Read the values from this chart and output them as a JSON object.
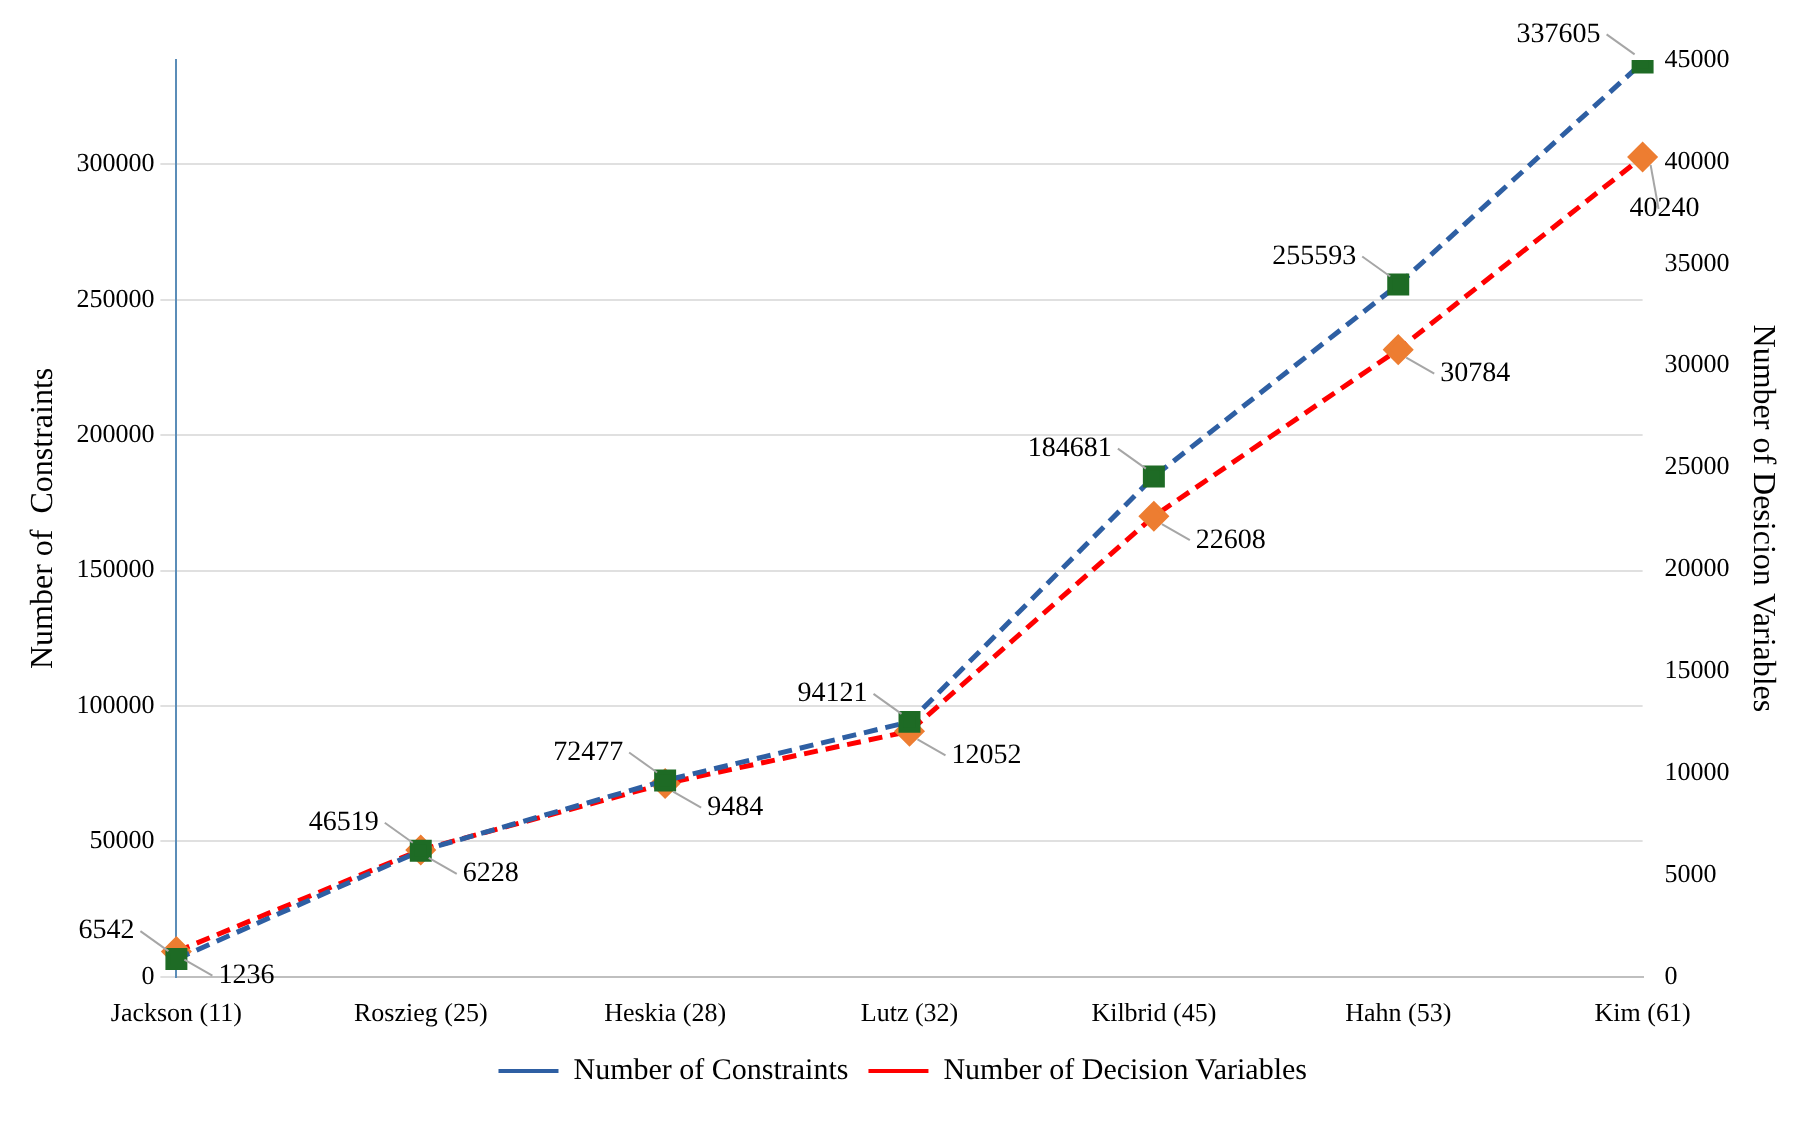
{
  "chart_data": {
    "type": "line",
    "ylabel": "Number of  Constraints",
    "y2label": "Number of Desicion Variables",
    "categories": [
      "Jackson (11)",
      "Roszieg (25)",
      "Heskia (28)",
      "Lutz (32)",
      "Kilbrid (45)",
      "Hahn (53)",
      "Kim (61)"
    ],
    "series": [
      {
        "name": "Number of Constraints",
        "color": "#2e5fa3",
        "colors": [
          "#1e6b25",
          "#1e6b25",
          "#1e6b25",
          "#1e6b25",
          "#1e6b25",
          "#1e6b25",
          "#1e6b25"
        ],
        "marker": "square",
        "values": [
          6542,
          46519,
          72477,
          94121,
          184681,
          255593,
          337605
        ]
      },
      {
        "name": "Number of Decision Variables",
        "color": "#ff0000",
        "colors": [
          "#ed7d31",
          "#ed7d31",
          "#ed7d31",
          "#ed7d31",
          "#ed7d31",
          "#ed7d31",
          "#ed7d31"
        ],
        "marker": "diamond",
        "axis": "y2",
        "values": [
          1236,
          6228,
          9484,
          12052,
          22608,
          30784,
          40240
        ]
      }
    ],
    "ylim": [
      0,
      338500
    ],
    "yticks": [
      0,
      50000,
      100000,
      150000,
      200000,
      250000,
      300000
    ],
    "y2lim": [
      0,
      45000
    ],
    "y2ticks": [
      0,
      5000,
      10000,
      15000,
      20000,
      25000,
      30000,
      35000,
      40000,
      45000
    ],
    "grid": "y",
    "legend": "bottom",
    "line_style": "dashed",
    "data_labels": true
  }
}
